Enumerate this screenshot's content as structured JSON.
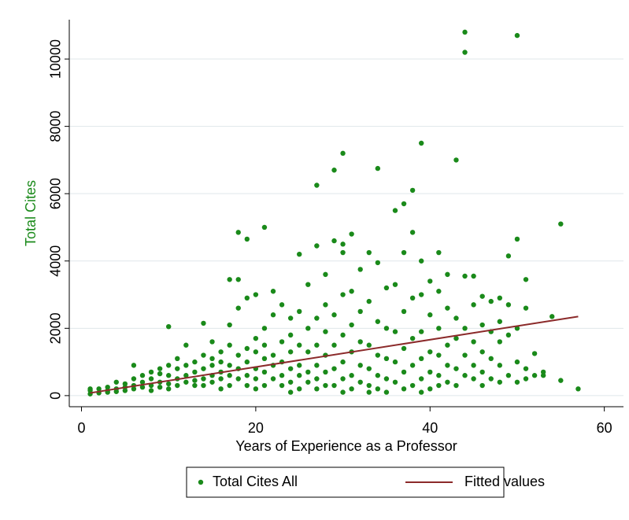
{
  "chart_data": {
    "type": "scatter",
    "x_label": "Years of Experience as a Professor",
    "y_label": "Total Cites",
    "xlim": [
      -1.4,
      62.2
    ],
    "ylim": [
      -330,
      11170
    ],
    "xticks": [
      0,
      20,
      40,
      60
    ],
    "yticks": [
      0,
      2000,
      4000,
      6000,
      8000,
      10000
    ],
    "grid": true,
    "legend": "bottom",
    "series": [
      {
        "name": "Total Cites All",
        "color": "#1a8a1a",
        "mode": "markers",
        "x": [
          1,
          1,
          1,
          2,
          2,
          3,
          3,
          3,
          4,
          4,
          4,
          5,
          5,
          5,
          6,
          6,
          6,
          6,
          7,
          7,
          7,
          8,
          8,
          8,
          8,
          9,
          9,
          9,
          9,
          10,
          10,
          10,
          10,
          10,
          11,
          11,
          11,
          11,
          12,
          12,
          12,
          12,
          13,
          13,
          13,
          13,
          14,
          14,
          14,
          14,
          14,
          15,
          15,
          15,
          15,
          15,
          16,
          16,
          16,
          16,
          16,
          17,
          17,
          17,
          17,
          17,
          17,
          18,
          18,
          18,
          18,
          18,
          18,
          19,
          19,
          19,
          19,
          19,
          19,
          20,
          20,
          20,
          20,
          20,
          20,
          21,
          21,
          21,
          21,
          21,
          21,
          22,
          22,
          22,
          22,
          22,
          23,
          23,
          23,
          23,
          23,
          24,
          24,
          24,
          24,
          24,
          24,
          25,
          25,
          25,
          25,
          25,
          25,
          26,
          26,
          26,
          26,
          26,
          27,
          27,
          27,
          27,
          27,
          27,
          27,
          28,
          28,
          28,
          28,
          28,
          28,
          29,
          29,
          29,
          29,
          29,
          29,
          30,
          30,
          30,
          30,
          30,
          30,
          30,
          30,
          31,
          31,
          31,
          31,
          31,
          31,
          32,
          32,
          32,
          32,
          32,
          33,
          33,
          33,
          33,
          33,
          33,
          34,
          34,
          34,
          34,
          34,
          34,
          35,
          35,
          35,
          35,
          35,
          36,
          36,
          36,
          36,
          36,
          37,
          37,
          37,
          37,
          37,
          37,
          38,
          38,
          38,
          38,
          38,
          38,
          39,
          39,
          39,
          39,
          39,
          39,
          39,
          40,
          40,
          40,
          40,
          40,
          41,
          41,
          41,
          41,
          41,
          41,
          42,
          42,
          42,
          42,
          42,
          43,
          43,
          43,
          43,
          43,
          44,
          44,
          44,
          44,
          44,
          44,
          45,
          45,
          45,
          45,
          45,
          46,
          46,
          46,
          46,
          46,
          47,
          47,
          47,
          47,
          48,
          48,
          48,
          48,
          48,
          49,
          49,
          49,
          49,
          50,
          50,
          50,
          50,
          50,
          51,
          51,
          51,
          51,
          52,
          52,
          53,
          53,
          54,
          55,
          55,
          57
        ],
        "y": [
          50,
          150,
          200,
          80,
          200,
          100,
          250,
          150,
          200,
          400,
          120,
          150,
          350,
          250,
          300,
          900,
          200,
          500,
          250,
          600,
          400,
          300,
          500,
          700,
          150,
          400,
          650,
          250,
          800,
          350,
          2050,
          600,
          900,
          200,
          500,
          800,
          300,
          1100,
          600,
          1500,
          400,
          900,
          450,
          1000,
          700,
          300,
          2150,
          800,
          500,
          1200,
          300,
          600,
          1100,
          900,
          400,
          1600,
          700,
          1300,
          500,
          1000,
          200,
          3450,
          900,
          1500,
          600,
          2100,
          300,
          4850,
          3450,
          1200,
          800,
          500,
          2600,
          4650,
          2900,
          1000,
          1400,
          600,
          300,
          3000,
          800,
          1300,
          1700,
          500,
          200,
          5000,
          2000,
          1100,
          700,
          300,
          1500,
          3100,
          1200,
          900,
          2400,
          500,
          1600,
          1000,
          600,
          2700,
          300,
          1800,
          1300,
          800,
          400,
          2300,
          100,
          4200,
          1500,
          900,
          2500,
          600,
          200,
          2000,
          1300,
          700,
          3300,
          400,
          6250,
          4450,
          2300,
          1500,
          900,
          500,
          200,
          3600,
          2700,
          1200,
          700,
          300,
          1900,
          6700,
          4600,
          2400,
          1500,
          800,
          300,
          7200,
          4500,
          4250,
          3000,
          1800,
          1000,
          500,
          100,
          4800,
          3100,
          2100,
          1300,
          600,
          200,
          3750,
          2500,
          1600,
          900,
          400,
          4250,
          2800,
          1500,
          800,
          300,
          100,
          6750,
          3950,
          2200,
          1200,
          600,
          200,
          3200,
          2000,
          1100,
          500,
          100,
          5500,
          3300,
          1900,
          1000,
          400,
          5700,
          4250,
          2500,
          1400,
          700,
          200,
          6100,
          4850,
          2900,
          1700,
          900,
          300,
          7500,
          4000,
          3000,
          1900,
          1100,
          500,
          100,
          3400,
          2400,
          1300,
          700,
          200,
          4250,
          3100,
          2000,
          1200,
          600,
          300,
          3600,
          2600,
          1500,
          900,
          400,
          7000,
          2300,
          1700,
          800,
          300,
          10800,
          10200,
          3550,
          2000,
          1200,
          600,
          3550,
          2700,
          1600,
          900,
          500,
          2950,
          2100,
          1300,
          700,
          300,
          2800,
          1900,
          1100,
          500,
          2900,
          2200,
          1600,
          900,
          400,
          4150,
          2700,
          1800,
          600,
          10700,
          4650,
          2000,
          1000,
          400,
          3450,
          2600,
          800,
          500,
          1250,
          600,
          700,
          600,
          2350,
          5100,
          450,
          200
        ]
      },
      {
        "name": "Fitted values",
        "color": "#8b2a2a",
        "mode": "line",
        "x": [
          1,
          57
        ],
        "y": [
          80,
          2350
        ]
      }
    ]
  }
}
